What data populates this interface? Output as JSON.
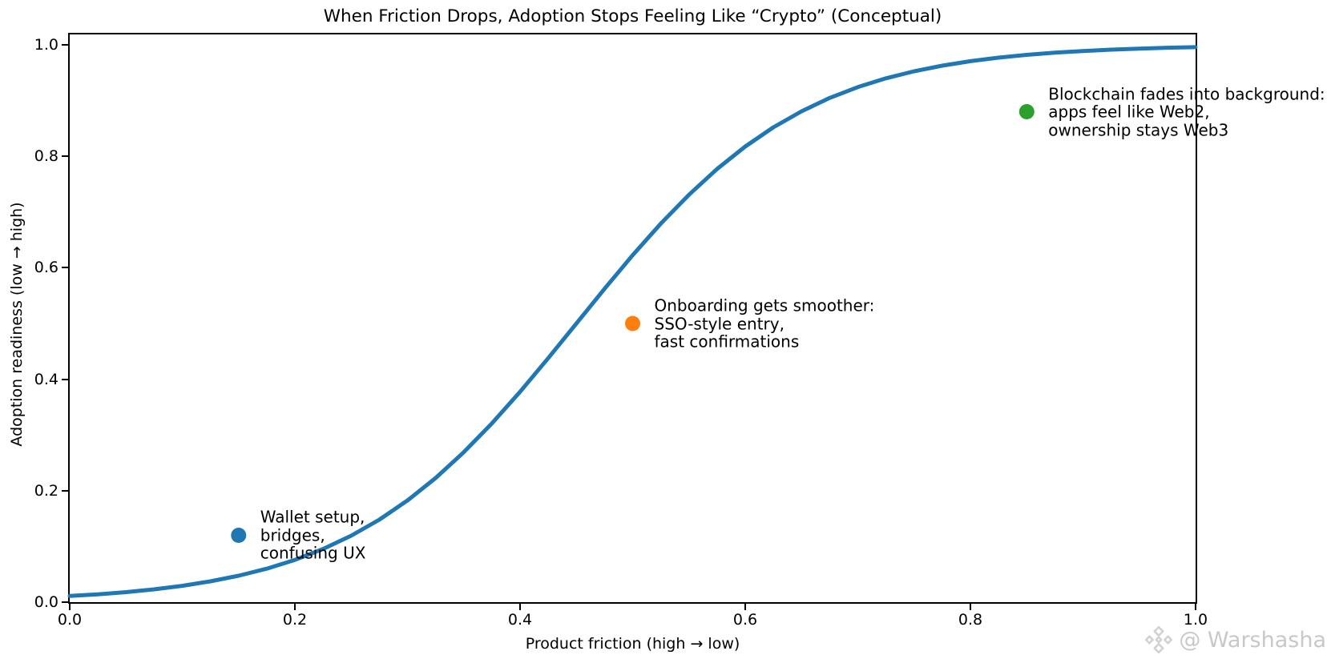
{
  "chart_data": {
    "type": "line",
    "title": "When Friction Drops, Adoption Stops Feeling Like “Crypto” (Conceptual)",
    "xlabel": "Product friction (high → low)",
    "ylabel": "Adoption readiness (low → high)",
    "xlim": [
      0.0,
      1.0
    ],
    "ylim": [
      0.0,
      1.02
    ],
    "grid": false,
    "legend": "none",
    "x_ticks": [
      {
        "value": 0.0,
        "label": "0.0"
      },
      {
        "value": 0.2,
        "label": "0.2"
      },
      {
        "value": 0.4,
        "label": "0.4"
      },
      {
        "value": 0.6,
        "label": "0.6"
      },
      {
        "value": 0.8,
        "label": "0.8"
      },
      {
        "value": 1.0,
        "label": "1.0"
      }
    ],
    "y_ticks": [
      {
        "value": 0.0,
        "label": "0.0"
      },
      {
        "value": 0.2,
        "label": "0.2"
      },
      {
        "value": 0.4,
        "label": "0.4"
      },
      {
        "value": 0.6,
        "label": "0.6"
      },
      {
        "value": 0.8,
        "label": "0.8"
      },
      {
        "value": 1.0,
        "label": "1.0"
      }
    ],
    "series": [
      {
        "name": "adoption-sigmoid-curve",
        "type": "line",
        "color": "#1f77b4",
        "line_width": 5,
        "x": [
          0,
          0.025,
          0.05,
          0.075,
          0.1,
          0.125,
          0.15,
          0.175,
          0.2,
          0.225,
          0.25,
          0.275,
          0.3,
          0.325,
          0.35,
          0.375,
          0.4,
          0.425,
          0.45,
          0.475,
          0.5,
          0.525,
          0.55,
          0.575,
          0.6,
          0.625,
          0.65,
          0.675,
          0.7,
          0.725,
          0.75,
          0.775,
          0.8,
          0.825,
          0.85,
          0.875,
          0.9,
          0.925,
          0.95,
          0.975,
          1
        ],
        "y": [
          0.011,
          0.0141,
          0.018,
          0.023,
          0.0293,
          0.0373,
          0.0474,
          0.0601,
          0.0759,
          0.0954,
          0.1192,
          0.148,
          0.1824,
          0.2227,
          0.2689,
          0.3208,
          0.3775,
          0.4378,
          0.5,
          0.5622,
          0.6225,
          0.6792,
          0.7311,
          0.7773,
          0.8176,
          0.852,
          0.8808,
          0.9047,
          0.9241,
          0.9399,
          0.9526,
          0.9627,
          0.9707,
          0.977,
          0.982,
          0.9859,
          0.989,
          0.9914,
          0.9933,
          0.9948,
          0.9959
        ]
      }
    ],
    "annotated_points": [
      {
        "x": 0.15,
        "y": 0.12,
        "color": "#1f77b4",
        "marker_radius": 9.5,
        "label_lines": [
          "Wallet setup,",
          "bridges,",
          "confusing UX"
        ]
      },
      {
        "x": 0.5,
        "y": 0.5,
        "color": "#ff7f0e",
        "marker_radius": 9.5,
        "label_lines": [
          "Onboarding gets smoother:",
          "SSO-style entry,",
          "fast confirmations"
        ]
      },
      {
        "x": 0.85,
        "y": 0.88,
        "color": "#2ca02c",
        "marker_radius": 9.5,
        "label_lines": [
          "Blockchain fades into background:",
          "apps feel like Web2,",
          "ownership stays Web3"
        ]
      }
    ]
  },
  "watermark": {
    "handle": "@ Warshasha",
    "icon": "gem-logo",
    "color": "#c8c8c8"
  },
  "style": {
    "curve_color": "#1f77b4",
    "spine_color": "#000000",
    "text_color": "#000000"
  }
}
